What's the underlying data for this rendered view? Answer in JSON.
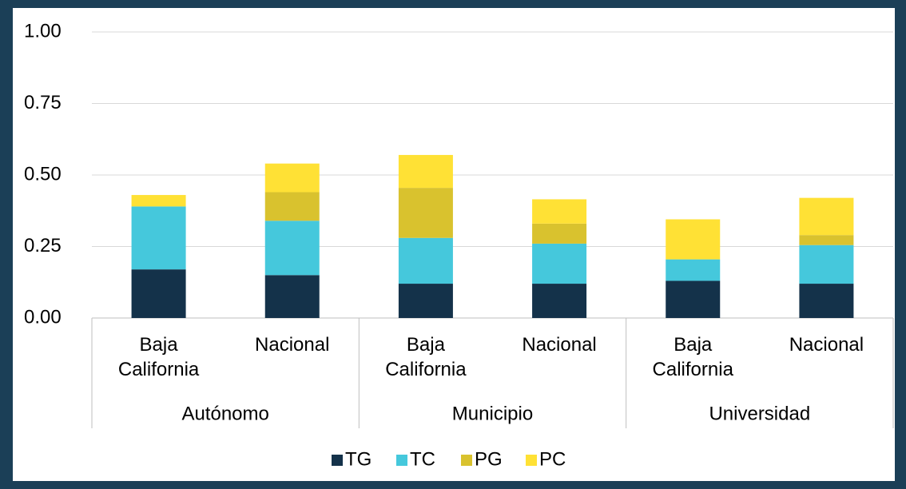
{
  "chart_data": {
    "type": "bar",
    "stacked": true,
    "categories": [
      "Baja California",
      "Nacional",
      "Baja California",
      "Nacional",
      "Baja California",
      "Nacional"
    ],
    "groups": [
      "Autónomo",
      "Municipio",
      "Universidad"
    ],
    "series": [
      {
        "name": "TG",
        "color": "#14324a",
        "values": [
          0.17,
          0.15,
          0.12,
          0.12,
          0.13,
          0.12
        ]
      },
      {
        "name": "TC",
        "color": "#45c8dc",
        "values": [
          0.22,
          0.19,
          0.16,
          0.14,
          0.075,
          0.135
        ]
      },
      {
        "name": "PG",
        "color": "#d9c22e",
        "values": [
          0,
          0.1,
          0.175,
          0.07,
          0,
          0.035
        ]
      },
      {
        "name": "PC",
        "color": "#ffe135",
        "values": [
          0.04,
          0.1,
          0.115,
          0.085,
          0.14,
          0.13
        ]
      }
    ],
    "ylim": [
      0,
      1
    ],
    "yticks": [
      {
        "value": 0,
        "label": "0.00"
      },
      {
        "value": 0.25,
        "label": "0.25"
      },
      {
        "value": 0.5,
        "label": "0.50"
      },
      {
        "value": 0.75,
        "label": "0.75"
      },
      {
        "value": 1,
        "label": "1.00"
      }
    ],
    "grid": true,
    "legend": "bottom"
  }
}
